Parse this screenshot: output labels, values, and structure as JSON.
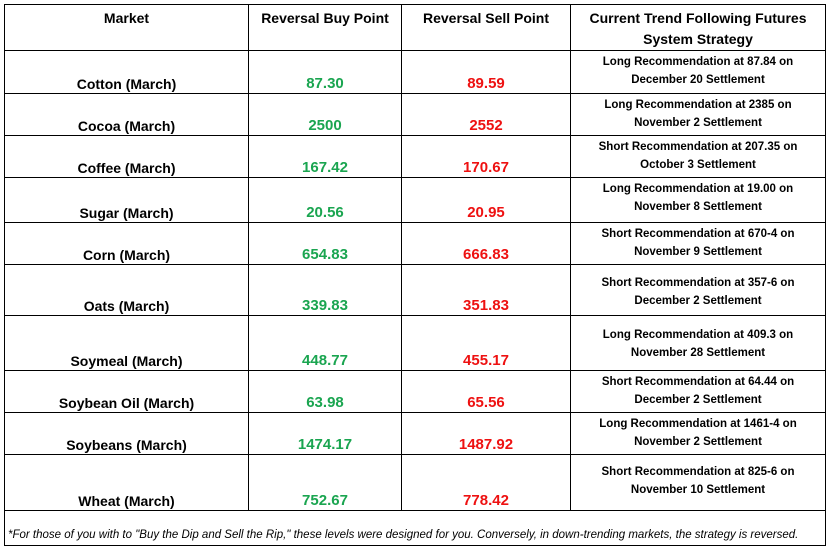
{
  "headers": {
    "market": "Market",
    "buy": "Reversal Buy Point",
    "sell": "Reversal Sell Point",
    "strategy_line1": "Current Trend Following Futures",
    "strategy_line2": "System Strategy"
  },
  "colors": {
    "buy": "#1aa550",
    "sell": "#ee1111"
  },
  "rows": [
    {
      "market": "Cotton (March)",
      "buy": "87.30",
      "sell": "89.59",
      "rec1": "Long Recommendation at 87.84 on",
      "rec2": "December 20 Settlement"
    },
    {
      "market": "Cocoa (March)",
      "buy": "2500",
      "sell": "2552",
      "rec1": "Long Recommendation at 2385 on",
      "rec2": "November 2 Settlement"
    },
    {
      "market": "Coffee (March)",
      "buy": "167.42",
      "sell": "170.67",
      "rec1": "Short Recommendation at 207.35 on",
      "rec2": "October 3 Settlement"
    },
    {
      "market": "Sugar (March)",
      "buy": "20.56",
      "sell": "20.95",
      "rec1": "Long Recommendation at 19.00 on",
      "rec2": "November 8 Settlement"
    },
    {
      "market": "Corn (March)",
      "buy": "654.83",
      "sell": "666.83",
      "rec1": "Short Recommendation at 670-4 on",
      "rec2": "November 9 Settlement"
    },
    {
      "market": "Oats (March)",
      "buy": "339.83",
      "sell": "351.83",
      "rec1": "Short Recommendation at 357-6 on",
      "rec2": "December 2 Settlement"
    },
    {
      "market": "Soymeal (March)",
      "buy": "448.77",
      "sell": "455.17",
      "rec1": "Long Recommendation at 409.3 on",
      "rec2": "November 28 Settlement"
    },
    {
      "market": "Soybean Oil (March)",
      "buy": "63.98",
      "sell": "65.56",
      "rec1": "Short Recommendation at 64.44 on",
      "rec2": "December 2 Settlement"
    },
    {
      "market": "Soybeans (March)",
      "buy": "1474.17",
      "sell": "1487.92",
      "rec1": "Long Recommendation at 1461-4 on",
      "rec2": "November 2 Settlement"
    },
    {
      "market": "Wheat (March)",
      "buy": "752.67",
      "sell": "778.42",
      "rec1": "Short Recommendation at 825-6 on",
      "rec2": "November 10 Settlement"
    }
  ],
  "footnote": "*For those of you with to \"Buy the Dip and Sell the Rip,\" these levels were designed for you. Conversely, in down-trending markets, the strategy is reversed."
}
